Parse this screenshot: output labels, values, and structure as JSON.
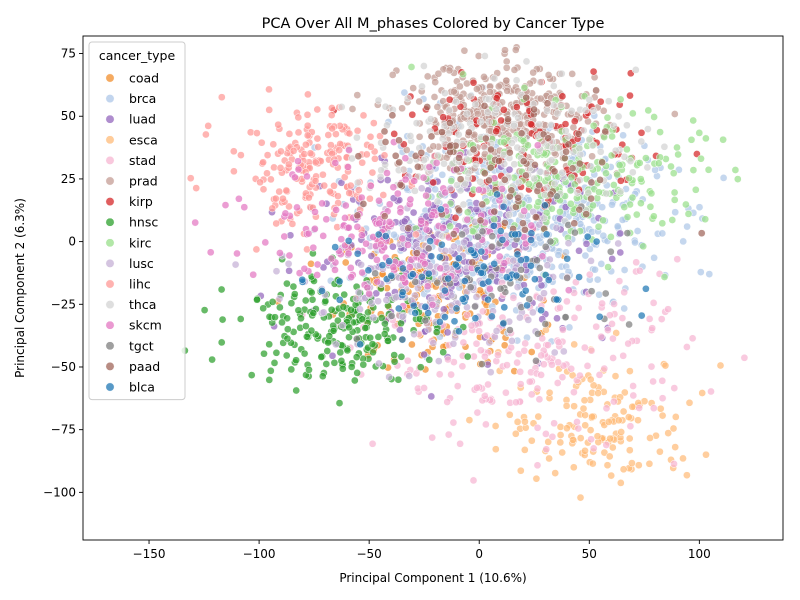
{
  "chart_data": {
    "type": "scatter",
    "title": "PCA Over All M_phases Colored by Cancer Type",
    "xlabel": "Principal Component 1 (10.6%)",
    "ylabel": "Principal Component 2 (6.3%)",
    "xlim": [
      -180,
      138
    ],
    "ylim": [
      -119,
      82
    ],
    "xticks": [
      -150,
      -100,
      -50,
      0,
      50,
      100
    ],
    "yticks": [
      -100,
      -75,
      -50,
      -25,
      0,
      25,
      50,
      75
    ],
    "xtick_labels": [
      "−150",
      "−100",
      "−50",
      "0",
      "50",
      "100"
    ],
    "ytick_labels": [
      "−100",
      "−75",
      "−50",
      "−25",
      "0",
      "25",
      "50",
      "75"
    ],
    "grid": false,
    "legend": {
      "title": "cancer_type",
      "placement": "upper-left"
    },
    "series": [
      {
        "name": "coad",
        "color": "#f28e2b",
        "center": [
          -20,
          -22
        ],
        "spread": [
          22,
          14
        ],
        "count": 170
      },
      {
        "name": "brca",
        "color": "#aec7e8",
        "center": [
          15,
          8
        ],
        "spread": [
          33,
          18
        ],
        "count": 500
      },
      {
        "name": "luad",
        "color": "#9467bd",
        "center": [
          -10,
          -2
        ],
        "spread": [
          35,
          18
        ],
        "count": 220
      },
      {
        "name": "esca",
        "color": "#ffbb78",
        "center": [
          55,
          -72
        ],
        "spread": [
          22,
          13
        ],
        "count": 150
      },
      {
        "name": "stad",
        "color": "#f7b6d2",
        "center": [
          25,
          -45
        ],
        "spread": [
          35,
          18
        ],
        "count": 220
      },
      {
        "name": "prad",
        "color": "#c49c94",
        "center": [
          10,
          50
        ],
        "spread": [
          22,
          11
        ],
        "count": 350
      },
      {
        "name": "kirp",
        "color": "#d62728",
        "center": [
          25,
          38
        ],
        "spread": [
          30,
          12
        ],
        "count": 120
      },
      {
        "name": "hnsc",
        "color": "#2ca02c",
        "center": [
          -65,
          -33
        ],
        "spread": [
          22,
          11
        ],
        "count": 230
      },
      {
        "name": "kirc",
        "color": "#98df8a",
        "center": [
          40,
          25
        ],
        "spread": [
          30,
          14
        ],
        "count": 250
      },
      {
        "name": "lusc",
        "color": "#c5b0d5",
        "center": [
          -20,
          -15
        ],
        "spread": [
          30,
          16
        ],
        "count": 200
      },
      {
        "name": "lihc",
        "color": "#ff9896",
        "center": [
          -75,
          30
        ],
        "spread": [
          20,
          12
        ],
        "count": 200
      },
      {
        "name": "thca",
        "color": "#d3d3d3",
        "center": [
          10,
          38
        ],
        "spread": [
          30,
          14
        ],
        "count": 200
      },
      {
        "name": "skcm",
        "color": "#e377c2",
        "center": [
          -35,
          5
        ],
        "spread": [
          32,
          14
        ],
        "count": 200
      },
      {
        "name": "tgct",
        "color": "#7f7f7f",
        "center": [
          10,
          -15
        ],
        "spread": [
          30,
          14
        ],
        "count": 60
      },
      {
        "name": "paad",
        "color": "#a0655a",
        "center": [
          10,
          25
        ],
        "spread": [
          30,
          16
        ],
        "count": 100
      },
      {
        "name": "blca",
        "color": "#1f77b4",
        "center": [
          -10,
          -15
        ],
        "spread": [
          30,
          14
        ],
        "count": 100
      }
    ]
  }
}
